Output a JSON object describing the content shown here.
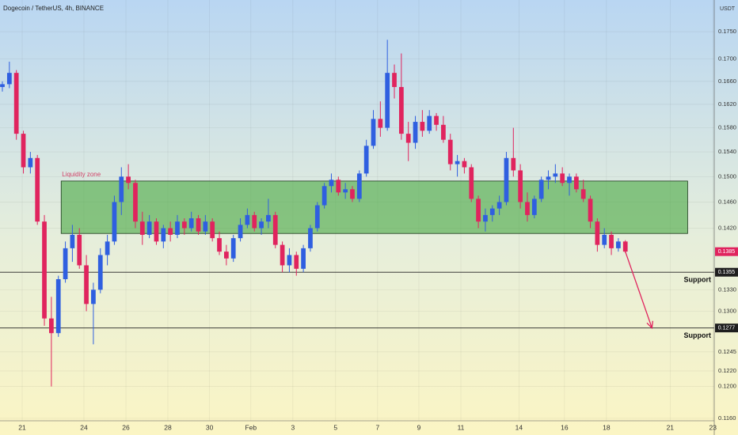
{
  "chart_data": {
    "type": "candlestick",
    "title": "Dogecoin / TetherUS, 4h, BINANCE",
    "currency": "USDT",
    "log_scale": true,
    "grid": true,
    "up_color": "#2f5fe0",
    "down_color": "#e0245e",
    "xlim": [
      -0.34,
      101.7
    ],
    "ylim": [
      0.1157,
      0.181
    ],
    "xticks": [
      {
        "value": 2.83,
        "label": "21"
      },
      {
        "value": 11.65,
        "label": "24"
      },
      {
        "value": 17.65,
        "label": "26"
      },
      {
        "value": 23.64,
        "label": "28"
      },
      {
        "value": 29.6,
        "label": "30"
      },
      {
        "value": 35.5,
        "label": "Feb"
      },
      {
        "value": 41.5,
        "label": "3"
      },
      {
        "value": 47.6,
        "label": "5"
      },
      {
        "value": 53.6,
        "label": "7"
      },
      {
        "value": 59.5,
        "label": "9"
      },
      {
        "value": 65.5,
        "label": "11"
      },
      {
        "value": 73.8,
        "label": "14"
      },
      {
        "value": 80.3,
        "label": "16"
      },
      {
        "value": 86.3,
        "label": "18"
      },
      {
        "value": 95.4,
        "label": "21"
      },
      {
        "value": 101.5,
        "label": "23"
      }
    ],
    "yticks": [
      {
        "value": 0.116,
        "label": "0.1160"
      },
      {
        "value": 0.12,
        "label": "0.1200"
      },
      {
        "value": 0.122,
        "label": "0.1220"
      },
      {
        "value": 0.1245,
        "label": "0.1245"
      },
      {
        "value": 0.13,
        "label": "0.1300"
      },
      {
        "value": 0.133,
        "label": "0.1330"
      },
      {
        "value": 0.142,
        "label": "0.1420"
      },
      {
        "value": 0.146,
        "label": "0.1460"
      },
      {
        "value": 0.15,
        "label": "0.1500"
      },
      {
        "value": 0.154,
        "label": "0.1540"
      },
      {
        "value": 0.158,
        "label": "0.1580"
      },
      {
        "value": 0.162,
        "label": "0.1620"
      },
      {
        "value": 0.166,
        "label": "0.1660"
      },
      {
        "value": 0.17,
        "label": "0.1700"
      },
      {
        "value": 0.175,
        "label": "0.1750"
      }
    ],
    "open": [
      0.165,
      0.1655,
      0.1675,
      0.157,
      0.1515,
      0.153,
      0.143,
      0.129,
      0.127,
      0.1345,
      0.139,
      0.141,
      0.1365,
      0.131,
      0.133,
      0.138,
      0.14,
      0.146,
      0.15,
      0.149,
      0.143,
      0.141,
      0.143,
      0.14,
      0.142,
      0.141,
      0.143,
      0.142,
      0.1435,
      0.1415,
      0.143,
      0.1405,
      0.1385,
      0.1375,
      0.1405,
      0.1425,
      0.144,
      0.142,
      0.143,
      0.144,
      0.1395,
      0.1365,
      0.138,
      0.136,
      0.139,
      0.142,
      0.1455,
      0.1485,
      0.1495,
      0.1475,
      0.148,
      0.1465,
      0.1505,
      0.155,
      0.1595,
      0.158,
      0.1675,
      0.165,
      0.157,
      0.1555,
      0.159,
      0.1575,
      0.16,
      0.1585,
      0.156,
      0.152,
      0.1525,
      0.1515,
      0.1465,
      0.143,
      0.144,
      0.145,
      0.146,
      0.153,
      0.151,
      0.146,
      0.144,
      0.1465,
      0.1495,
      0.15,
      0.1505,
      0.149,
      0.15,
      0.148,
      0.1465,
      0.143,
      0.1395,
      0.141,
      0.139,
      0.14
    ],
    "high": [
      0.166,
      0.1695,
      0.168,
      0.1575,
      0.154,
      0.1535,
      0.144,
      0.132,
      0.135,
      0.14,
      0.1425,
      0.142,
      0.138,
      0.134,
      0.139,
      0.141,
      0.147,
      0.1515,
      0.152,
      0.1495,
      0.1445,
      0.144,
      0.1435,
      0.1425,
      0.143,
      0.144,
      0.1435,
      0.1445,
      0.144,
      0.144,
      0.1435,
      0.1415,
      0.1395,
      0.141,
      0.1435,
      0.145,
      0.1445,
      0.1435,
      0.1465,
      0.1445,
      0.14,
      0.139,
      0.1385,
      0.1395,
      0.1425,
      0.146,
      0.149,
      0.1505,
      0.15,
      0.149,
      0.1485,
      0.151,
      0.156,
      0.161,
      0.1625,
      0.1735,
      0.169,
      0.171,
      0.159,
      0.16,
      0.161,
      0.161,
      0.1605,
      0.16,
      0.157,
      0.1535,
      0.153,
      0.152,
      0.147,
      0.145,
      0.1455,
      0.147,
      0.154,
      0.158,
      0.152,
      0.1475,
      0.147,
      0.15,
      0.151,
      0.152,
      0.1515,
      0.1505,
      0.1505,
      0.1495,
      0.147,
      0.1435,
      0.142,
      0.1415,
      0.1405,
      0.1402
    ],
    "low": [
      0.1642,
      0.1648,
      0.156,
      0.1505,
      0.1505,
      0.1425,
      0.128,
      0.12,
      0.1265,
      0.134,
      0.137,
      0.136,
      0.13,
      0.1255,
      0.1325,
      0.1365,
      0.1395,
      0.144,
      0.148,
      0.142,
      0.1395,
      0.1405,
      0.1395,
      0.139,
      0.14,
      0.1405,
      0.141,
      0.1415,
      0.141,
      0.141,
      0.14,
      0.138,
      0.1365,
      0.137,
      0.14,
      0.142,
      0.1415,
      0.141,
      0.142,
      0.139,
      0.1355,
      0.1355,
      0.135,
      0.1355,
      0.1385,
      0.1415,
      0.145,
      0.1475,
      0.147,
      0.1465,
      0.146,
      0.146,
      0.15,
      0.1545,
      0.1565,
      0.1575,
      0.163,
      0.156,
      0.1525,
      0.1545,
      0.1565,
      0.157,
      0.1575,
      0.1555,
      0.151,
      0.15,
      0.1505,
      0.146,
      0.142,
      0.1415,
      0.143,
      0.144,
      0.1455,
      0.15,
      0.145,
      0.143,
      0.1435,
      0.146,
      0.148,
      0.149,
      0.1485,
      0.147,
      0.1475,
      0.146,
      0.142,
      0.1385,
      0.139,
      0.138,
      0.1385,
      0.1383
    ],
    "close": [
      0.1655,
      0.1675,
      0.157,
      0.1515,
      0.153,
      0.143,
      0.129,
      0.127,
      0.1345,
      0.139,
      0.141,
      0.1365,
      0.131,
      0.133,
      0.138,
      0.14,
      0.146,
      0.15,
      0.149,
      0.143,
      0.141,
      0.143,
      0.14,
      0.142,
      0.141,
      0.143,
      0.142,
      0.1435,
      0.1415,
      0.143,
      0.1405,
      0.1385,
      0.1375,
      0.1405,
      0.1425,
      0.144,
      0.142,
      0.143,
      0.144,
      0.1395,
      0.1365,
      0.138,
      0.136,
      0.139,
      0.142,
      0.1455,
      0.1485,
      0.1495,
      0.1475,
      0.148,
      0.1465,
      0.1505,
      0.155,
      0.1595,
      0.158,
      0.1675,
      0.165,
      0.157,
      0.1555,
      0.159,
      0.1575,
      0.16,
      0.1585,
      0.156,
      0.152,
      0.1525,
      0.1515,
      0.1465,
      0.143,
      0.144,
      0.145,
      0.146,
      0.153,
      0.151,
      0.146,
      0.144,
      0.1465,
      0.1495,
      0.15,
      0.1505,
      0.149,
      0.15,
      0.148,
      0.1465,
      0.143,
      0.1395,
      0.141,
      0.139,
      0.14,
      0.1385
    ],
    "last_price": 0.1385,
    "zone": {
      "label": "Liquidity zone",
      "x": [
        8.4,
        97.9
      ],
      "y": [
        0.1412,
        0.1493
      ]
    },
    "supports": [
      {
        "label": "Support",
        "value": 0.1355
      },
      {
        "label": "Support",
        "value": 0.1277
      }
    ],
    "arrow": {
      "from": [
        89,
        0.1385
      ],
      "to": [
        92.8,
        0.1277
      ]
    }
  }
}
